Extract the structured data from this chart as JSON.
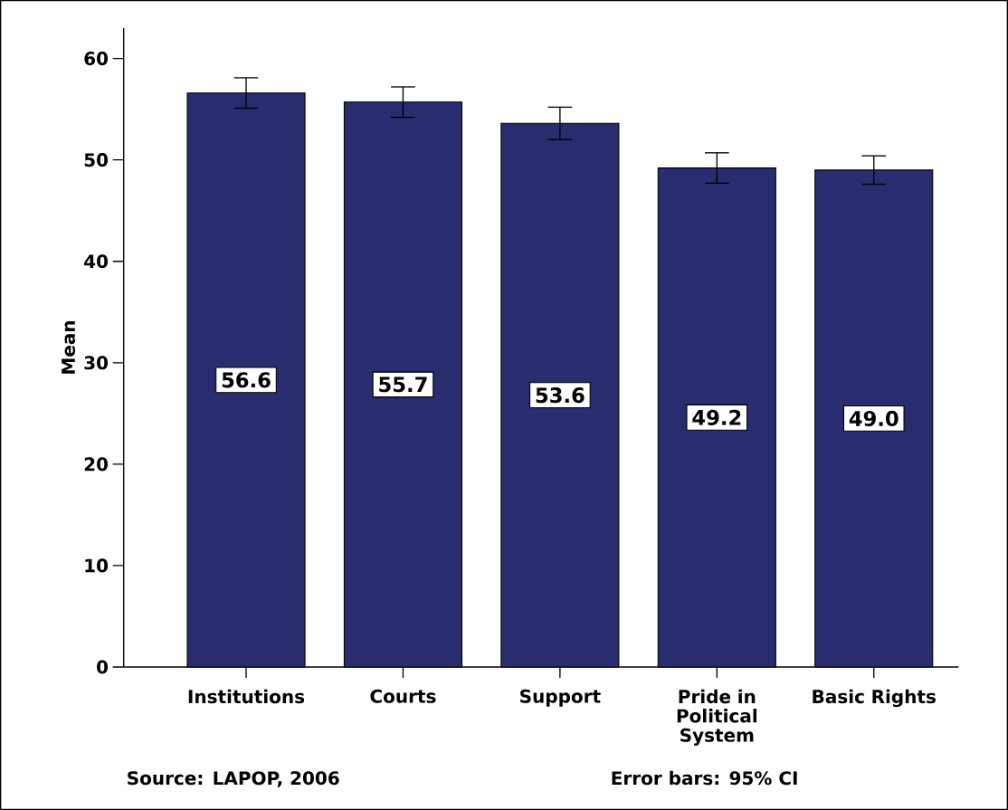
{
  "chart_data": {
    "type": "bar",
    "ylabel": "Mean",
    "categories": [
      "Institutions",
      "Courts",
      "Support",
      "Pride in Political System",
      "Basic Rights"
    ],
    "values": [
      56.6,
      55.7,
      53.6,
      49.2,
      49.0
    ],
    "errors": [
      1.5,
      1.5,
      1.6,
      1.5,
      1.4
    ],
    "color": "#292c6e",
    "ylim": [
      0,
      63
    ],
    "yticks": [
      0,
      10,
      20,
      30,
      40,
      50,
      60
    ],
    "value_labels": [
      "56.6",
      "55.7",
      "53.6",
      "49.2",
      "49.0"
    ],
    "data_labels": true,
    "annotations": [
      "Source: LAPOP, 2006",
      "Error bars: 95% CI"
    ]
  }
}
